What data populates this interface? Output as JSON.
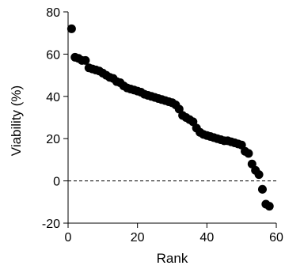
{
  "chart_data": {
    "type": "scatter",
    "xlabel": "Rank",
    "ylabel": "Viability (%)",
    "xlim": [
      0,
      60
    ],
    "ylim": [
      -20,
      80
    ],
    "x_ticks": [
      0,
      20,
      40,
      60
    ],
    "y_ticks": [
      -20,
      0,
      20,
      40,
      60,
      80
    ],
    "x_tick_labels": [
      "0",
      "20",
      "40",
      "60"
    ],
    "y_tick_labels": [
      "-20",
      "0",
      "20",
      "40",
      "60",
      "80"
    ],
    "reference_line": {
      "y": 0,
      "style": "dashed"
    },
    "grid": false,
    "legend": "none",
    "marker_color": "#000000",
    "series": [
      {
        "x": [
          1,
          2,
          3,
          4,
          5,
          6,
          7,
          8,
          9,
          10,
          11,
          12,
          13,
          14,
          15,
          16,
          17,
          18,
          19,
          20,
          21,
          22,
          23,
          24,
          25,
          26,
          27,
          28,
          29,
          30,
          31,
          32,
          33,
          34,
          35,
          36,
          37,
          38,
          39,
          40,
          41,
          42,
          43,
          44,
          45,
          46,
          47,
          48,
          49,
          50,
          51,
          52,
          53,
          54,
          55,
          56,
          57,
          58
        ],
        "y": [
          72,
          58.5,
          58,
          57,
          57,
          53.5,
          53,
          52.5,
          52,
          51,
          50,
          49,
          48.5,
          47,
          46.5,
          45,
          44,
          43.5,
          43,
          42.5,
          42,
          41,
          40.5,
          40,
          39.5,
          39,
          38.5,
          38,
          37.5,
          37,
          36,
          34,
          31,
          30,
          29,
          28,
          25,
          23,
          22,
          21.5,
          21,
          20.5,
          20,
          19.5,
          19,
          19,
          18.5,
          18,
          17.5,
          17,
          14,
          13,
          8,
          5,
          3,
          -4,
          -11,
          -12
        ]
      }
    ]
  }
}
